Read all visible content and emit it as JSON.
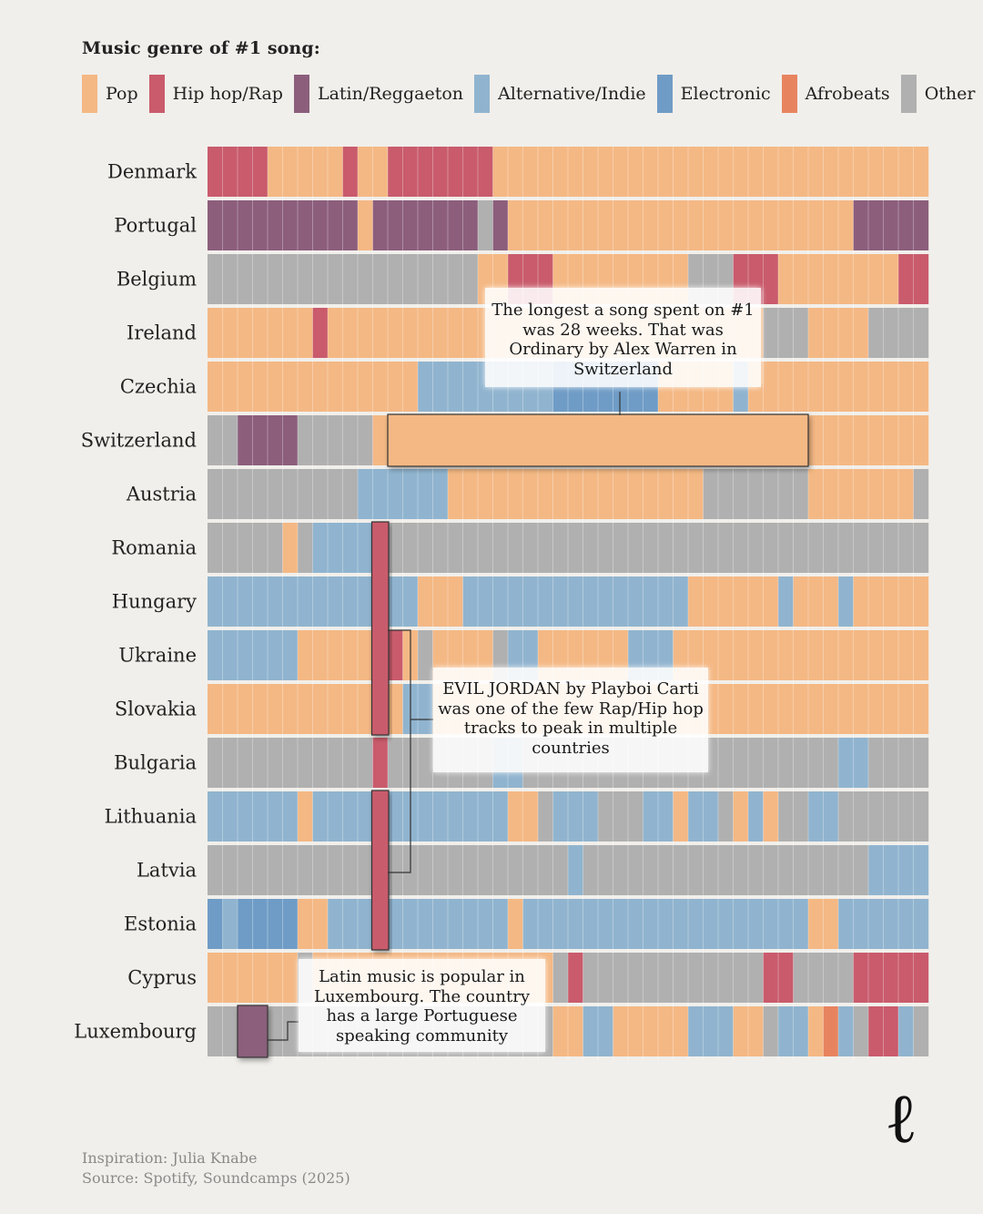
{
  "legend": {
    "title": "Music genre of #1 song:",
    "items": [
      {
        "key": "pop",
        "label": "Pop",
        "color": "#f4b884"
      },
      {
        "key": "hiphop",
        "label": "Hip hop/Rap",
        "color": "#c95b6c"
      },
      {
        "key": "latin",
        "label": "Latin/Reggaeton",
        "color": "#8c5e7c"
      },
      {
        "key": "alt",
        "label": "Alternative/Indie",
        "color": "#90b4cf"
      },
      {
        "key": "elec",
        "label": "Electronic",
        "color": "#6f9cc6"
      },
      {
        "key": "afro",
        "label": "Afrobeats",
        "color": "#e7845f"
      },
      {
        "key": "other",
        "label": "Other",
        "color": "#b0b0b0"
      }
    ]
  },
  "chart_data": {
    "type": "heatmap",
    "title": "Music genre of #1 song:",
    "x_unit": "weeks",
    "weeks": 48,
    "series": [
      {
        "name": "Denmark",
        "segments": [
          [
            "hiphop",
            4
          ],
          [
            "pop",
            5
          ],
          [
            "hiphop",
            1
          ],
          [
            "pop",
            2
          ],
          [
            "hiphop",
            7
          ],
          [
            "pop",
            29
          ]
        ]
      },
      {
        "name": "Portugal",
        "segments": [
          [
            "latin",
            10
          ],
          [
            "pop",
            1
          ],
          [
            "latin",
            7
          ],
          [
            "other",
            1
          ],
          [
            "latin",
            1
          ],
          [
            "pop",
            23
          ],
          [
            "latin",
            5
          ]
        ]
      },
      {
        "name": "Belgium",
        "segments": [
          [
            "other",
            18
          ],
          [
            "pop",
            2
          ],
          [
            "hiphop",
            3
          ],
          [
            "pop",
            9
          ],
          [
            "other",
            3
          ],
          [
            "hiphop",
            3
          ],
          [
            "pop",
            8
          ],
          [
            "hiphop",
            2
          ]
        ]
      },
      {
        "name": "Ireland",
        "segments": [
          [
            "pop",
            7
          ],
          [
            "hiphop",
            1
          ],
          [
            "pop",
            29
          ],
          [
            "other",
            3
          ],
          [
            "pop",
            4
          ],
          [
            "other",
            4
          ]
        ]
      },
      {
        "name": "Czechia",
        "segments": [
          [
            "pop",
            14
          ],
          [
            "alt",
            9
          ],
          [
            "elec",
            7
          ],
          [
            "pop",
            5
          ],
          [
            "alt",
            1
          ],
          [
            "pop",
            12
          ]
        ]
      },
      {
        "name": "Switzerland",
        "segments": [
          [
            "other",
            2
          ],
          [
            "latin",
            4
          ],
          [
            "other",
            5
          ],
          [
            "pop",
            37
          ]
        ]
      },
      {
        "name": "Austria",
        "segments": [
          [
            "other",
            10
          ],
          [
            "alt",
            6
          ],
          [
            "pop",
            17
          ],
          [
            "other",
            7
          ],
          [
            "pop",
            7
          ],
          [
            "other",
            1
          ]
        ]
      },
      {
        "name": "Romania",
        "segments": [
          [
            "other",
            5
          ],
          [
            "pop",
            1
          ],
          [
            "other",
            1
          ],
          [
            "alt",
            4
          ],
          [
            "hiphop",
            1
          ],
          [
            "other",
            36
          ]
        ]
      },
      {
        "name": "Hungary",
        "segments": [
          [
            "alt",
            11
          ],
          [
            "hiphop",
            1
          ],
          [
            "alt",
            2
          ],
          [
            "pop",
            3
          ],
          [
            "alt",
            15
          ],
          [
            "pop",
            6
          ],
          [
            "alt",
            1
          ],
          [
            "pop",
            3
          ],
          [
            "alt",
            1
          ],
          [
            "pop",
            5
          ]
        ]
      },
      {
        "name": "Ukraine",
        "segments": [
          [
            "alt",
            6
          ],
          [
            "pop",
            5
          ],
          [
            "hiphop",
            2
          ],
          [
            "pop",
            1
          ],
          [
            "other",
            1
          ],
          [
            "pop",
            4
          ],
          [
            "other",
            1
          ],
          [
            "alt",
            2
          ],
          [
            "pop",
            6
          ],
          [
            "alt",
            3
          ],
          [
            "pop",
            17
          ]
        ]
      },
      {
        "name": "Slovakia",
        "segments": [
          [
            "pop",
            11
          ],
          [
            "hiphop",
            1
          ],
          [
            "pop",
            1
          ],
          [
            "alt",
            2
          ],
          [
            "pop",
            33
          ]
        ]
      },
      {
        "name": "Bulgaria",
        "segments": [
          [
            "other",
            11
          ],
          [
            "hiphop",
            1
          ],
          [
            "other",
            7
          ],
          [
            "alt",
            2
          ],
          [
            "other",
            21
          ],
          [
            "alt",
            2
          ],
          [
            "other",
            4
          ]
        ]
      },
      {
        "name": "Lithuania",
        "segments": [
          [
            "alt",
            6
          ],
          [
            "pop",
            1
          ],
          [
            "alt",
            4
          ],
          [
            "hiphop",
            1
          ],
          [
            "alt",
            8
          ],
          [
            "pop",
            2
          ],
          [
            "other",
            1
          ],
          [
            "alt",
            3
          ],
          [
            "other",
            3
          ],
          [
            "alt",
            2
          ],
          [
            "pop",
            1
          ],
          [
            "alt",
            2
          ],
          [
            "other",
            1
          ],
          [
            "pop",
            1
          ],
          [
            "alt",
            1
          ],
          [
            "pop",
            1
          ],
          [
            "other",
            2
          ],
          [
            "alt",
            2
          ],
          [
            "other",
            6
          ]
        ]
      },
      {
        "name": "Latvia",
        "segments": [
          [
            "other",
            11
          ],
          [
            "hiphop",
            1
          ],
          [
            "other",
            12
          ],
          [
            "alt",
            1
          ],
          [
            "other",
            19
          ],
          [
            "alt",
            4
          ]
        ]
      },
      {
        "name": "Estonia",
        "segments": [
          [
            "elec",
            1
          ],
          [
            "alt",
            1
          ],
          [
            "elec",
            4
          ],
          [
            "pop",
            2
          ],
          [
            "alt",
            3
          ],
          [
            "hiphop",
            1
          ],
          [
            "alt",
            8
          ],
          [
            "pop",
            1
          ],
          [
            "alt",
            19
          ],
          [
            "pop",
            2
          ],
          [
            "alt",
            6
          ]
        ]
      },
      {
        "name": "Cyprus",
        "segments": [
          [
            "pop",
            6
          ],
          [
            "other",
            1
          ],
          [
            "pop",
            16
          ],
          [
            "other",
            1
          ],
          [
            "hiphop",
            1
          ],
          [
            "other",
            12
          ],
          [
            "hiphop",
            2
          ],
          [
            "other",
            4
          ],
          [
            "hiphop",
            5
          ]
        ]
      },
      {
        "name": "Luxembourg",
        "segments": [
          [
            "other",
            2
          ],
          [
            "latin",
            2
          ],
          [
            "other",
            19
          ],
          [
            "pop",
            2
          ],
          [
            "alt",
            2
          ],
          [
            "pop",
            5
          ],
          [
            "alt",
            3
          ],
          [
            "pop",
            2
          ],
          [
            "other",
            1
          ],
          [
            "alt",
            2
          ],
          [
            "pop",
            1
          ],
          [
            "afro",
            1
          ],
          [
            "alt",
            1
          ],
          [
            "other",
            1
          ],
          [
            "hiphop",
            2
          ],
          [
            "alt",
            1
          ],
          [
            "other",
            1
          ]
        ]
      }
    ],
    "highlights": [
      {
        "row": "Switzerland",
        "start_week": 12,
        "length": 28,
        "genre": "pop"
      },
      {
        "rows": [
          "Romania",
          "Slovakia"
        ],
        "week": 11,
        "genre": "hiphop"
      },
      {
        "rows": [
          "Lithuania",
          "Estonia"
        ],
        "week": 11,
        "genre": "hiphop"
      },
      {
        "row": "Luxembourg",
        "start_week": 2,
        "length": 2,
        "genre": "latin"
      }
    ]
  },
  "annotations": {
    "switzerland": "The longest a song spent on #1 was 28 weeks. That was Ordinary by Alex Warren in Switzerland",
    "evil_jordan": "EVIL JORDAN by Playboi Carti was one of the few Rap/Hip hop tracks to peak in multiple countries",
    "luxembourg": "Latin music is popular in Luxembourg. The country has a large Portuguese speaking community"
  },
  "footer": {
    "inspiration": "Inspiration: Julia Knabe",
    "source": "Source: Spotify, Soundcamps (2025)"
  },
  "logo": {
    "glyph": "ℓ"
  }
}
